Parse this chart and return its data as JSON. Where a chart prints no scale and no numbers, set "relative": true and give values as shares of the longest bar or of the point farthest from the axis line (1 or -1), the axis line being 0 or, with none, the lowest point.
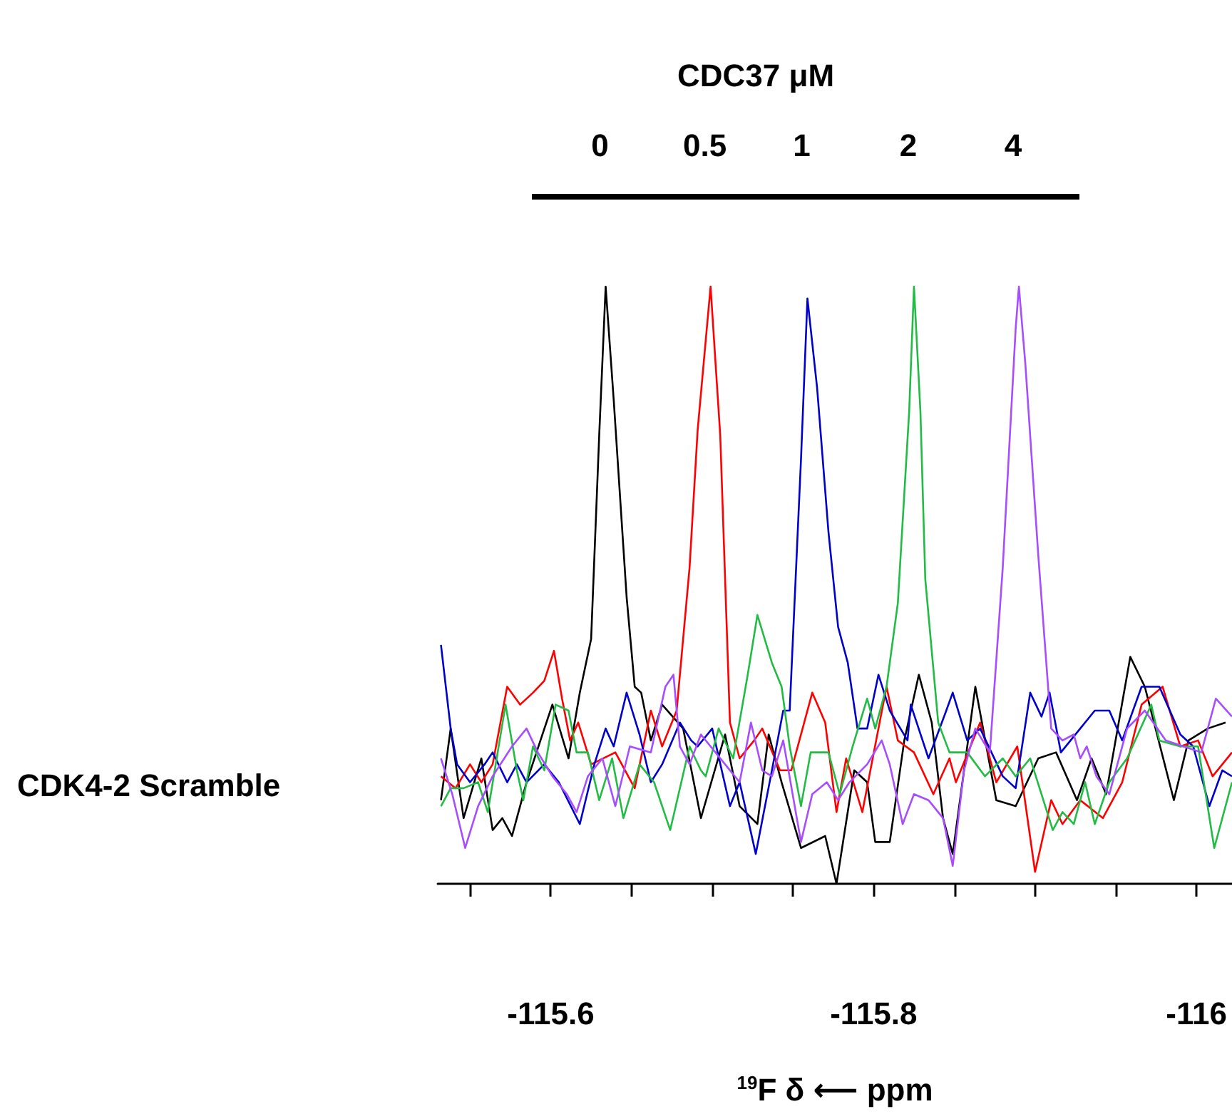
{
  "chart_data": {
    "type": "line",
    "title": "CDC37 μM",
    "xlabel": "$^{19}$F δ ⟵ ppm",
    "annotations": [
      "CDK4-2 Scramble",
      "0",
      "0.5",
      "1",
      "2",
      "4"
    ],
    "relative": true,
    "marker": "none",
    "xlim": [
      -115.53,
      -116.022
    ],
    "xticks": [
      {
        "value": -115.55,
        "label": null
      },
      -115.6,
      {
        "value": -115.65,
        "label": null
      },
      {
        "value": -115.7,
        "label": null
      },
      {
        "value": -115.75,
        "label": null
      },
      -115.8,
      {
        "value": -115.85,
        "label": null
      },
      {
        "value": -115.9,
        "label": null
      },
      {
        "value": -115.95,
        "label": null
      },
      -116
    ],
    "series": [
      {
        "color": "#000000",
        "x": [
          -115.532,
          -115.538,
          -115.546,
          -115.557,
          -115.564,
          -115.57,
          -115.576,
          -115.585,
          -115.601,
          -115.611,
          -115.618,
          -115.625,
          -115.63,
          -115.634,
          -115.639,
          -115.647,
          -115.652,
          -115.656,
          -115.662,
          -115.669,
          -115.682,
          -115.693,
          -115.708,
          -115.717,
          -115.728,
          -115.735,
          -115.743,
          -115.755,
          -115.77,
          -115.777,
          -115.788,
          -115.796,
          -115.801,
          -115.81,
          -115.819,
          -115.828,
          -115.836,
          -115.843,
          -115.849,
          -115.863,
          -115.876,
          -115.888,
          -115.902,
          -115.913,
          -115.926,
          -115.935,
          -115.944,
          -115.959,
          -115.968,
          -115.986,
          -115.995,
          -116.007,
          -116.018
        ],
        "values": [
          0.14,
          0.26,
          0.11,
          0.21,
          0.09,
          0.11,
          0.08,
          0.17,
          0.3,
          0.21,
          0.32,
          0.41,
          0.75,
          1.0,
          0.81,
          0.48,
          0.33,
          0.32,
          0.24,
          0.3,
          0.26,
          0.11,
          0.25,
          0.13,
          0.1,
          0.25,
          0.17,
          0.06,
          0.08,
          0.0,
          0.19,
          0.17,
          0.07,
          0.07,
          0.24,
          0.35,
          0.27,
          0.11,
          0.05,
          0.33,
          0.14,
          0.13,
          0.21,
          0.22,
          0.14,
          0.21,
          0.15,
          0.38,
          0.33,
          0.14,
          0.24,
          0.26,
          0.27
        ]
      },
      {
        "color": "#ff0000",
        "x": [
          -115.532,
          -115.541,
          -115.55,
          -115.557,
          -115.564,
          -115.573,
          -115.581,
          -115.589,
          -115.596,
          -115.602,
          -115.607,
          -115.612,
          -115.617,
          -115.625,
          -115.64,
          -115.652,
          -115.662,
          -115.669,
          -115.678,
          -115.686,
          -115.691,
          -115.699,
          -115.705,
          -115.711,
          -115.717,
          -115.726,
          -115.731,
          -115.742,
          -115.749,
          -115.762,
          -115.77,
          -115.777,
          -115.783,
          -115.793,
          -115.808,
          -115.815,
          -115.825,
          -115.837,
          -115.847,
          -115.851,
          -115.866,
          -115.876,
          -115.889,
          -115.9,
          -115.91,
          -115.917,
          -115.928,
          -115.942,
          -115.954,
          -115.966,
          -115.979,
          -115.99,
          -116.001,
          -116.01,
          -116.022
        ],
        "values": [
          0.18,
          0.16,
          0.2,
          0.17,
          0.2,
          0.33,
          0.3,
          0.32,
          0.34,
          0.39,
          0.31,
          0.24,
          0.27,
          0.2,
          0.22,
          0.16,
          0.29,
          0.23,
          0.29,
          0.53,
          0.76,
          1.0,
          0.75,
          0.27,
          0.21,
          0.24,
          0.26,
          0.19,
          0.19,
          0.32,
          0.27,
          0.12,
          0.21,
          0.12,
          0.33,
          0.24,
          0.22,
          0.15,
          0.21,
          0.17,
          0.27,
          0.17,
          0.23,
          0.02,
          0.14,
          0.1,
          0.14,
          0.11,
          0.17,
          0.3,
          0.33,
          0.23,
          0.24,
          0.18,
          0.22
        ]
      },
      {
        "color": "#0000cc",
        "x": [
          -115.532,
          -115.538,
          -115.542,
          -115.55,
          -115.559,
          -115.564,
          -115.573,
          -115.579,
          -115.585,
          -115.596,
          -115.605,
          -115.618,
          -115.627,
          -115.634,
          -115.639,
          -115.647,
          -115.655,
          -115.662,
          -115.669,
          -115.68,
          -115.687,
          -115.691,
          -115.7,
          -115.711,
          -115.717,
          -115.727,
          -115.737,
          -115.744,
          -115.748,
          -115.755,
          -115.759,
          -115.765,
          -115.772,
          -115.778,
          -115.784,
          -115.79,
          -115.796,
          -115.803,
          -115.81,
          -115.821,
          -115.823,
          -115.834,
          -115.845,
          -115.849,
          -115.858,
          -115.866,
          -115.88,
          -115.888,
          -115.897,
          -115.904,
          -115.909,
          -115.916,
          -115.928,
          -115.937,
          -115.946,
          -115.954,
          -115.966,
          -115.977,
          -115.99,
          -115.998,
          -116.008,
          -116.016,
          -116.022
        ],
        "values": [
          0.4,
          0.26,
          0.2,
          0.17,
          0.2,
          0.22,
          0.17,
          0.2,
          0.17,
          0.2,
          0.17,
          0.1,
          0.2,
          0.26,
          0.23,
          0.32,
          0.25,
          0.17,
          0.2,
          0.27,
          0.24,
          0.23,
          0.26,
          0.13,
          0.17,
          0.05,
          0.19,
          0.29,
          0.29,
          0.71,
          0.98,
          0.83,
          0.59,
          0.43,
          0.37,
          0.26,
          0.26,
          0.35,
          0.29,
          0.24,
          0.3,
          0.21,
          0.29,
          0.32,
          0.24,
          0.26,
          0.18,
          0.16,
          0.32,
          0.28,
          0.32,
          0.22,
          0.26,
          0.29,
          0.29,
          0.24,
          0.33,
          0.33,
          0.25,
          0.23,
          0.13,
          0.19,
          0.18
        ]
      },
      {
        "color": "#22bb44",
        "x": [
          -115.532,
          -115.538,
          -115.546,
          -115.555,
          -115.561,
          -115.572,
          -115.579,
          -115.583,
          -115.589,
          -115.596,
          -115.603,
          -115.611,
          -115.616,
          -115.623,
          -115.63,
          -115.638,
          -115.645,
          -115.655,
          -115.664,
          -115.674,
          -115.686,
          -115.693,
          -115.696,
          -115.704,
          -115.713,
          -115.722,
          -115.728,
          -115.737,
          -115.743,
          -115.748,
          -115.755,
          -115.761,
          -115.772,
          -115.779,
          -115.787,
          -115.796,
          -115.801,
          -115.808,
          -115.815,
          -115.822,
          -115.825,
          -115.829,
          -115.832,
          -115.84,
          -115.847,
          -115.858,
          -115.869,
          -115.88,
          -115.888,
          -115.897,
          -115.911,
          -115.917,
          -115.924,
          -115.931,
          -115.937,
          -115.946,
          -115.957,
          -115.972,
          -115.977,
          -115.99,
          -116.001,
          -116.011,
          -116.022
        ],
        "values": [
          0.13,
          0.16,
          0.16,
          0.17,
          0.12,
          0.3,
          0.19,
          0.14,
          0.23,
          0.19,
          0.3,
          0.29,
          0.22,
          0.22,
          0.14,
          0.21,
          0.11,
          0.2,
          0.17,
          0.09,
          0.23,
          0.19,
          0.18,
          0.26,
          0.21,
          0.35,
          0.45,
          0.37,
          0.33,
          0.23,
          0.13,
          0.22,
          0.22,
          0.15,
          0.23,
          0.31,
          0.26,
          0.33,
          0.47,
          0.79,
          1.0,
          0.79,
          0.51,
          0.27,
          0.22,
          0.22,
          0.18,
          0.21,
          0.18,
          0.21,
          0.09,
          0.12,
          0.1,
          0.17,
          0.1,
          0.17,
          0.21,
          0.3,
          0.24,
          0.23,
          0.23,
          0.06,
          0.17
        ]
      },
      {
        "color": "#a64dff",
        "x": [
          -115.532,
          -115.539,
          -115.547,
          -115.555,
          -115.564,
          -115.576,
          -115.585,
          -115.592,
          -115.601,
          -115.61,
          -115.616,
          -115.623,
          -115.632,
          -115.64,
          -115.649,
          -115.662,
          -115.671,
          -115.676,
          -115.68,
          -115.686,
          -115.693,
          -115.699,
          -115.708,
          -115.717,
          -115.724,
          -115.731,
          -115.737,
          -115.744,
          -115.755,
          -115.762,
          -115.771,
          -115.778,
          -115.785,
          -115.796,
          -115.805,
          -115.81,
          -115.818,
          -115.825,
          -115.834,
          -115.843,
          -115.849,
          -115.856,
          -115.863,
          -115.872,
          -115.88,
          -115.888,
          -115.89,
          -115.894,
          -115.902,
          -115.91,
          -115.917,
          -115.924,
          -115.928,
          -115.932,
          -115.938,
          -115.946,
          -115.957,
          -115.968,
          -115.981,
          -115.992,
          -116.003,
          -116.012,
          -116.022
        ],
        "values": [
          0.21,
          0.15,
          0.06,
          0.13,
          0.18,
          0.23,
          0.26,
          0.22,
          0.18,
          0.15,
          0.12,
          0.18,
          0.21,
          0.13,
          0.23,
          0.22,
          0.33,
          0.35,
          0.23,
          0.2,
          0.25,
          0.23,
          0.2,
          0.17,
          0.27,
          0.19,
          0.18,
          0.24,
          0.07,
          0.15,
          0.17,
          0.14,
          0.17,
          0.2,
          0.24,
          0.2,
          0.1,
          0.15,
          0.14,
          0.11,
          0.03,
          0.19,
          0.26,
          0.22,
          0.53,
          0.93,
          1.0,
          0.87,
          0.55,
          0.26,
          0.24,
          0.25,
          0.21,
          0.23,
          0.18,
          0.15,
          0.26,
          0.29,
          0.24,
          0.23,
          0.22,
          0.31,
          0.28
        ]
      }
    ]
  }
}
